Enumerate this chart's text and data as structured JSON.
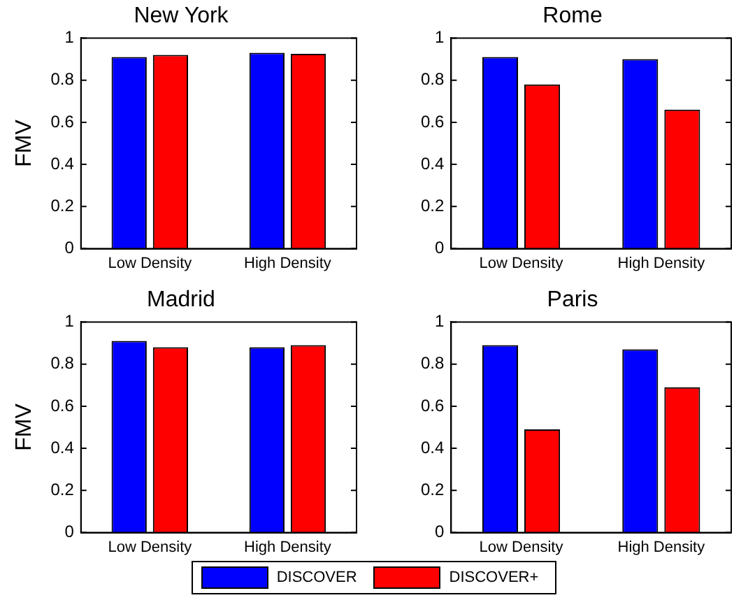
{
  "chart_data": [
    {
      "type": "bar",
      "title": "New York",
      "ylabel": "FMV",
      "categories": [
        "Low Density",
        "High Density"
      ],
      "series": [
        {
          "name": "DISCOVER",
          "color": "#0000ff",
          "values": [
            0.91,
            0.93
          ]
        },
        {
          "name": "DISCOVER+",
          "color": "#ff0000",
          "values": [
            0.92,
            0.925
          ]
        }
      ],
      "ylim": [
        0,
        1
      ],
      "yticks": [
        0,
        0.2,
        0.4,
        0.6,
        0.8,
        1
      ],
      "grid": false,
      "legend": "bottom"
    },
    {
      "type": "bar",
      "title": "Rome",
      "categories": [
        "Low Density",
        "High Density"
      ],
      "series": [
        {
          "color": "#0000ff",
          "values": [
            0.91,
            0.9
          ]
        },
        {
          "color": "#ff0000",
          "values": [
            0.78,
            0.66
          ]
        }
      ],
      "ylim": [
        0,
        1
      ],
      "yticks": [
        0,
        0.2,
        0.4,
        0.6,
        0.8,
        1
      ],
      "grid": false
    },
    {
      "type": "bar",
      "title": "Madrid",
      "ylabel": "FMV",
      "categories": [
        "Low Density",
        "High Density"
      ],
      "series": [
        {
          "color": "#0000ff",
          "values": [
            0.91,
            0.88
          ]
        },
        {
          "color": "#ff0000",
          "values": [
            0.88,
            0.89
          ]
        }
      ],
      "ylim": [
        0,
        1
      ],
      "yticks": [
        0,
        0.2,
        0.4,
        0.6,
        0.8,
        1
      ],
      "grid": false
    },
    {
      "type": "bar",
      "title": "Paris",
      "categories": [
        "Low Density",
        "High Density"
      ],
      "series": [
        {
          "color": "#0000ff",
          "values": [
            0.89,
            0.87
          ]
        },
        {
          "color": "#ff0000",
          "values": [
            0.49,
            0.69
          ]
        }
      ],
      "ylim": [
        0,
        1
      ],
      "yticks": [
        0,
        0.2,
        0.4,
        0.6,
        0.8,
        1
      ],
      "grid": false
    }
  ]
}
